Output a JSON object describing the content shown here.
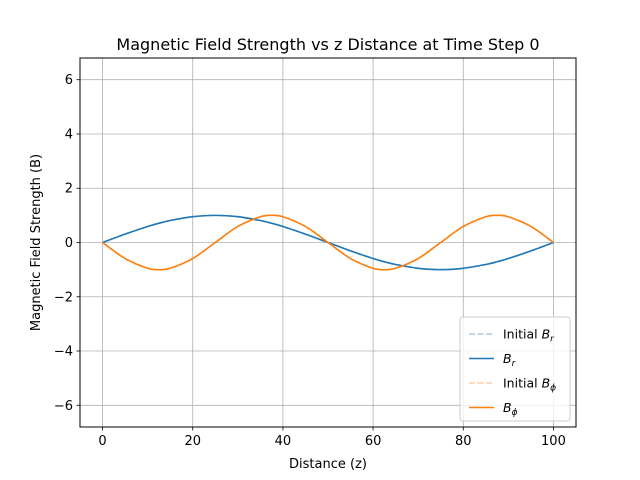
{
  "chart_data": {
    "type": "line",
    "title": "Magnetic Field Strength vs z Distance at Time Step 0",
    "xlabel": "Distance (z)",
    "ylabel": "Magnetic Field Strength (B)",
    "xlim": [
      -5,
      105
    ],
    "ylim": [
      -6.8,
      6.8
    ],
    "xticks": [
      0,
      20,
      40,
      60,
      80,
      100
    ],
    "yticks": [
      -6,
      -4,
      -2,
      0,
      2,
      4,
      6
    ],
    "grid": true,
    "legend_position": "lower right",
    "x": [
      0,
      5,
      10,
      12.5,
      15,
      20,
      25,
      30,
      35,
      37.5,
      40,
      45,
      50,
      55,
      60,
      62.5,
      65,
      70,
      75,
      80,
      85,
      87.5,
      90,
      95,
      100
    ],
    "series": [
      {
        "name": "Initial $B_r$",
        "legend_main": "Initial B",
        "legend_sub": "r",
        "color": "#1f77b4",
        "style": "dashed",
        "opacity": 0.4,
        "values": [
          0,
          0.31,
          0.59,
          0.71,
          0.81,
          0.95,
          1.0,
          0.95,
          0.81,
          0.71,
          0.59,
          0.31,
          0,
          -0.31,
          -0.59,
          -0.71,
          -0.81,
          -0.95,
          -1.0,
          -0.95,
          -0.81,
          -0.71,
          -0.59,
          -0.31,
          0
        ]
      },
      {
        "name": "$B_r$",
        "legend_main": "B",
        "legend_sub": "r",
        "color": "#1f77b4",
        "style": "solid",
        "opacity": 1,
        "values": [
          0,
          0.31,
          0.59,
          0.71,
          0.81,
          0.95,
          1.0,
          0.95,
          0.81,
          0.71,
          0.59,
          0.31,
          0,
          -0.31,
          -0.59,
          -0.71,
          -0.81,
          -0.95,
          -1.0,
          -0.95,
          -0.81,
          -0.71,
          -0.59,
          -0.31,
          0
        ]
      },
      {
        "name": "Initial $B_\\phi$",
        "legend_main": "Initial B",
        "legend_sub": "ϕ",
        "color": "#ff7f0e",
        "style": "dashed",
        "opacity": 0.4,
        "values": [
          0,
          -0.59,
          -0.95,
          -1.0,
          -0.95,
          -0.59,
          0,
          0.59,
          0.95,
          1.0,
          0.95,
          0.59,
          0,
          -0.59,
          -0.95,
          -1.0,
          -0.95,
          -0.59,
          0,
          0.59,
          0.95,
          1.0,
          0.95,
          0.59,
          0
        ]
      },
      {
        "name": "$B_\\phi$",
        "legend_main": "B",
        "legend_sub": "ϕ",
        "color": "#ff7f0e",
        "style": "solid",
        "opacity": 1,
        "values": [
          0,
          -0.59,
          -0.95,
          -1.0,
          -0.95,
          -0.59,
          0,
          0.59,
          0.95,
          1.0,
          0.95,
          0.59,
          0,
          -0.59,
          -0.95,
          -1.0,
          -0.95,
          -0.59,
          0,
          0.59,
          0.95,
          1.0,
          0.95,
          0.59,
          0
        ]
      }
    ]
  }
}
